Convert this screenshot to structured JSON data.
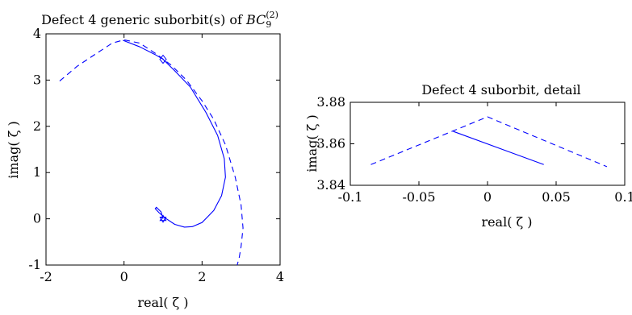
{
  "chart_data": [
    {
      "type": "line",
      "title": "Defect 4 generic suborbit(s) of BC",
      "title_main": "Defect 4 generic suborbit(s) of ",
      "title_sym": "BC",
      "title_sub": "9",
      "title_sup": "(2)",
      "xlabel": "real( ζ )",
      "ylabel": "imag( ζ )",
      "xlim": [
        -2,
        4
      ],
      "ylim": [
        -1,
        4
      ],
      "xticks": [
        -2,
        0,
        2,
        4
      ],
      "yticks": [
        -1,
        0,
        1,
        2,
        3,
        4
      ],
      "xtick_labels": [
        "-2",
        "0",
        "2",
        "4"
      ],
      "ytick_labels": [
        "-1",
        "0",
        "1",
        "2",
        "3",
        "4"
      ],
      "grid": false,
      "series": [
        {
          "style": "dashed",
          "color": "#0000ff",
          "x": [
            -1.65,
            -1.2,
            -0.7,
            -0.3,
            0.0,
            0.4,
            0.8,
            1.2,
            1.6,
            2.0,
            2.3,
            2.6,
            2.85,
            3.0,
            3.05,
            3.0,
            2.95,
            2.9
          ],
          "y": [
            2.98,
            3.3,
            3.58,
            3.8,
            3.87,
            3.8,
            3.58,
            3.33,
            3.0,
            2.55,
            2.15,
            1.6,
            0.9,
            0.3,
            -0.2,
            -0.6,
            -0.85,
            -1.0
          ]
        },
        {
          "style": "solid",
          "color": "#0000ff",
          "x": [
            -0.03,
            0.4,
            0.8,
            1.0,
            1.3,
            1.7,
            2.1,
            2.4,
            2.57,
            2.6,
            2.5,
            2.3,
            2.0,
            1.75,
            1.55,
            1.3,
            1.05,
            0.9,
            0.8,
            0.83,
            0.95,
            1.0
          ],
          "y": [
            3.86,
            3.72,
            3.55,
            3.45,
            3.2,
            2.85,
            2.3,
            1.8,
            1.3,
            0.9,
            0.5,
            0.18,
            -0.08,
            -0.17,
            -0.18,
            -0.12,
            0.02,
            0.13,
            0.22,
            0.25,
            0.15,
            0.0
          ]
        }
      ],
      "markers": [
        {
          "shape": "diamond",
          "x": 1.0,
          "y": 3.45
        },
        {
          "shape": "hexagram",
          "x": 1.0,
          "y": 0.0
        }
      ]
    },
    {
      "type": "line",
      "title": "Defect 4 suborbit, detail",
      "xlabel": "real( ζ )",
      "ylabel": "imag( ζ )",
      "xlim": [
        -0.1,
        0.1
      ],
      "ylim": [
        3.84,
        3.88
      ],
      "xticks": [
        -0.1,
        -0.05,
        0,
        0.05,
        0.1
      ],
      "yticks": [
        3.84,
        3.86,
        3.88
      ],
      "xtick_labels": [
        "-0.1",
        "-0.05",
        "0",
        "0.05",
        "0.1"
      ],
      "ytick_labels": [
        "3.84",
        "3.86",
        "3.88"
      ],
      "grid": false,
      "series": [
        {
          "style": "dashed",
          "color": "#0000ff",
          "x": [
            -0.085,
            0.0,
            0.087
          ],
          "y": [
            3.85,
            3.873,
            3.849
          ]
        },
        {
          "style": "solid",
          "color": "#0000ff",
          "x": [
            -0.025,
            0.041
          ],
          "y": [
            3.866,
            3.85
          ]
        }
      ]
    }
  ]
}
